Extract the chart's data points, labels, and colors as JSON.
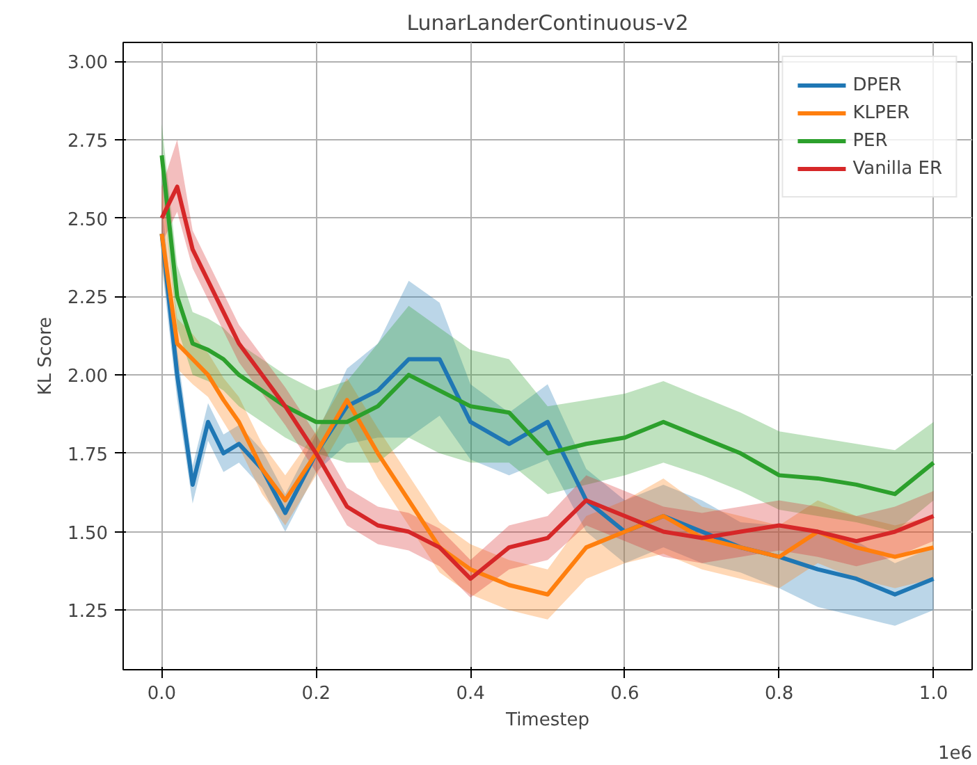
{
  "chart_data": {
    "type": "line",
    "title": "LunarLanderContinuous-v2",
    "xlabel": "Timestep",
    "ylabel": "KL Score",
    "annotations": [
      "1e6"
    ],
    "x": [
      0,
      0.02,
      0.04,
      0.06,
      0.08,
      0.1,
      0.13,
      0.16,
      0.2,
      0.24,
      0.28,
      0.32,
      0.36,
      0.4,
      0.45,
      0.5,
      0.55,
      0.6,
      0.65,
      0.7,
      0.75,
      0.8,
      0.85,
      0.9,
      0.95,
      1.0
    ],
    "series": [
      {
        "name": "DPER",
        "color": "#1f77b4",
        "values": [
          2.45,
          2.0,
          1.65,
          1.85,
          1.75,
          1.78,
          1.7,
          1.56,
          1.75,
          1.9,
          1.95,
          2.05,
          2.05,
          1.85,
          1.78,
          1.85,
          1.6,
          1.5,
          1.55,
          1.5,
          1.45,
          1.42,
          1.38,
          1.35,
          1.3,
          1.35
        ],
        "lower": [
          2.35,
          1.92,
          1.59,
          1.79,
          1.69,
          1.72,
          1.64,
          1.5,
          1.69,
          1.78,
          1.8,
          1.8,
          1.87,
          1.73,
          1.68,
          1.73,
          1.5,
          1.4,
          1.45,
          1.4,
          1.37,
          1.32,
          1.26,
          1.23,
          1.2,
          1.25
        ],
        "upper": [
          2.55,
          2.08,
          1.71,
          1.91,
          1.81,
          1.84,
          1.76,
          1.62,
          1.81,
          2.02,
          2.1,
          2.3,
          2.23,
          1.97,
          1.88,
          1.97,
          1.7,
          1.6,
          1.65,
          1.6,
          1.53,
          1.52,
          1.5,
          1.47,
          1.4,
          1.45
        ]
      },
      {
        "name": "KLPER",
        "color": "#ff7f0e",
        "values": [
          2.45,
          2.1,
          2.05,
          2.0,
          1.92,
          1.85,
          1.7,
          1.6,
          1.75,
          1.92,
          1.75,
          1.6,
          1.45,
          1.38,
          1.33,
          1.3,
          1.45,
          1.5,
          1.55,
          1.48,
          1.45,
          1.42,
          1.5,
          1.45,
          1.42,
          1.45
        ],
        "lower": [
          2.35,
          2.02,
          1.97,
          1.93,
          1.85,
          1.77,
          1.62,
          1.52,
          1.68,
          1.85,
          1.67,
          1.52,
          1.37,
          1.3,
          1.25,
          1.22,
          1.35,
          1.4,
          1.43,
          1.38,
          1.35,
          1.32,
          1.4,
          1.35,
          1.32,
          1.35
        ],
        "upper": [
          2.6,
          2.18,
          2.13,
          2.07,
          1.99,
          1.93,
          1.78,
          1.68,
          1.82,
          1.99,
          1.83,
          1.68,
          1.53,
          1.46,
          1.41,
          1.38,
          1.55,
          1.6,
          1.67,
          1.58,
          1.55,
          1.52,
          1.6,
          1.55,
          1.52,
          1.55
        ]
      },
      {
        "name": "PER",
        "color": "#2ca02c",
        "values": [
          2.7,
          2.25,
          2.1,
          2.08,
          2.05,
          2.0,
          1.95,
          1.9,
          1.85,
          1.85,
          1.9,
          2.0,
          1.95,
          1.9,
          1.88,
          1.75,
          1.78,
          1.8,
          1.85,
          1.8,
          1.75,
          1.68,
          1.67,
          1.65,
          1.62,
          1.72
        ],
        "lower": [
          2.6,
          2.15,
          2.0,
          1.98,
          1.95,
          1.9,
          1.85,
          1.8,
          1.75,
          1.72,
          1.72,
          1.8,
          1.75,
          1.72,
          1.72,
          1.62,
          1.65,
          1.68,
          1.72,
          1.68,
          1.63,
          1.57,
          1.55,
          1.53,
          1.5,
          1.6
        ],
        "upper": [
          2.8,
          2.35,
          2.2,
          2.18,
          2.15,
          2.1,
          2.05,
          2.0,
          1.95,
          1.98,
          2.1,
          2.22,
          2.15,
          2.08,
          2.05,
          1.9,
          1.92,
          1.94,
          1.98,
          1.93,
          1.88,
          1.82,
          1.8,
          1.78,
          1.76,
          1.85
        ]
      },
      {
        "name": "Vanilla ER",
        "color": "#d62728",
        "values": [
          2.5,
          2.6,
          2.4,
          2.3,
          2.2,
          2.1,
          2.0,
          1.9,
          1.75,
          1.58,
          1.52,
          1.5,
          1.45,
          1.35,
          1.45,
          1.48,
          1.6,
          1.55,
          1.5,
          1.48,
          1.5,
          1.52,
          1.5,
          1.47,
          1.5,
          1.55
        ],
        "lower": [
          2.42,
          2.52,
          2.34,
          2.24,
          2.14,
          2.04,
          1.94,
          1.84,
          1.69,
          1.52,
          1.46,
          1.44,
          1.39,
          1.29,
          1.38,
          1.41,
          1.52,
          1.47,
          1.42,
          1.4,
          1.42,
          1.44,
          1.42,
          1.39,
          1.42,
          1.47
        ],
        "upper": [
          2.6,
          2.75,
          2.46,
          2.36,
          2.26,
          2.16,
          2.06,
          1.96,
          1.81,
          1.64,
          1.58,
          1.56,
          1.51,
          1.41,
          1.52,
          1.55,
          1.68,
          1.63,
          1.58,
          1.56,
          1.58,
          1.6,
          1.58,
          1.55,
          1.58,
          1.63
        ]
      }
    ],
    "xlim": [
      -0.05,
      1.05
    ],
    "ylim": [
      1.06,
      3.06
    ],
    "xticks": [
      {
        "value": 0,
        "label": "0.0"
      },
      {
        "value": 0.2,
        "label": "0.2"
      },
      {
        "value": 0.4,
        "label": "0.4"
      },
      {
        "value": 0.6,
        "label": "0.6"
      },
      {
        "value": 0.8,
        "label": "0.8"
      },
      {
        "value": 1.0,
        "label": "1.0"
      }
    ],
    "yticks": [
      {
        "value": 1.25,
        "label": "1.25"
      },
      {
        "value": 1.5,
        "label": "1.50"
      },
      {
        "value": 1.75,
        "label": "1.75"
      },
      {
        "value": 2.0,
        "label": "2.00"
      },
      {
        "value": 2.25,
        "label": "2.25"
      },
      {
        "value": 2.5,
        "label": "2.50"
      },
      {
        "value": 2.75,
        "label": "2.75"
      },
      {
        "value": 3.0,
        "label": "3.00"
      }
    ],
    "grid": true,
    "legend": "top right",
    "line_style": "solid",
    "marker": "none"
  }
}
